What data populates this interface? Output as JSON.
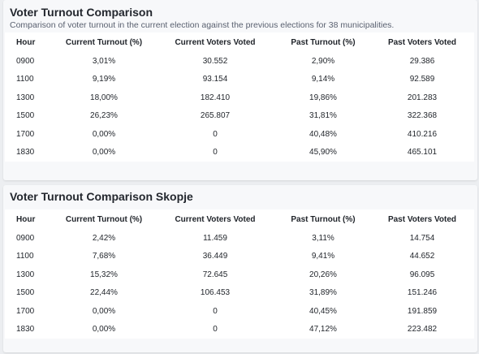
{
  "tables": [
    {
      "title": "Voter Turnout Comparison",
      "subtitle": "Comparison of voter turnout in the current election against the previous elections for 38 municipalities.",
      "columns": [
        "Hour",
        "Current Turnout (%)",
        "Current Voters Voted",
        "Past Turnout (%)",
        "Past Voters Voted"
      ],
      "rows": [
        [
          "0900",
          "3,01%",
          "30.552",
          "2,90%",
          "29.386"
        ],
        [
          "1100",
          "9,19%",
          "93.154",
          "9,14%",
          "92.589"
        ],
        [
          "1300",
          "18,00%",
          "182.410",
          "19,86%",
          "201.283"
        ],
        [
          "1500",
          "26,23%",
          "265.807",
          "31,81%",
          "322.368"
        ],
        [
          "1700",
          "0,00%",
          "0",
          "40,48%",
          "410.216"
        ],
        [
          "1830",
          "0,00%",
          "0",
          "45,90%",
          "465.101"
        ]
      ]
    },
    {
      "title": "Voter Turnout Comparison Skopje",
      "subtitle": "",
      "columns": [
        "Hour",
        "Current Turnout (%)",
        "Current Voters Voted",
        "Past Turnout (%)",
        "Past Voters Voted"
      ],
      "rows": [
        [
          "0900",
          "2,42%",
          "11.459",
          "3,11%",
          "14.754"
        ],
        [
          "1100",
          "7,68%",
          "36.449",
          "9,41%",
          "44.652"
        ],
        [
          "1300",
          "15,32%",
          "72.645",
          "20,26%",
          "96.095"
        ],
        [
          "1500",
          "22,44%",
          "106.453",
          "31,89%",
          "151.246"
        ],
        [
          "1700",
          "0,00%",
          "0",
          "40,45%",
          "191.859"
        ],
        [
          "1830",
          "0,00%",
          "0",
          "47,12%",
          "223.482"
        ]
      ]
    }
  ]
}
